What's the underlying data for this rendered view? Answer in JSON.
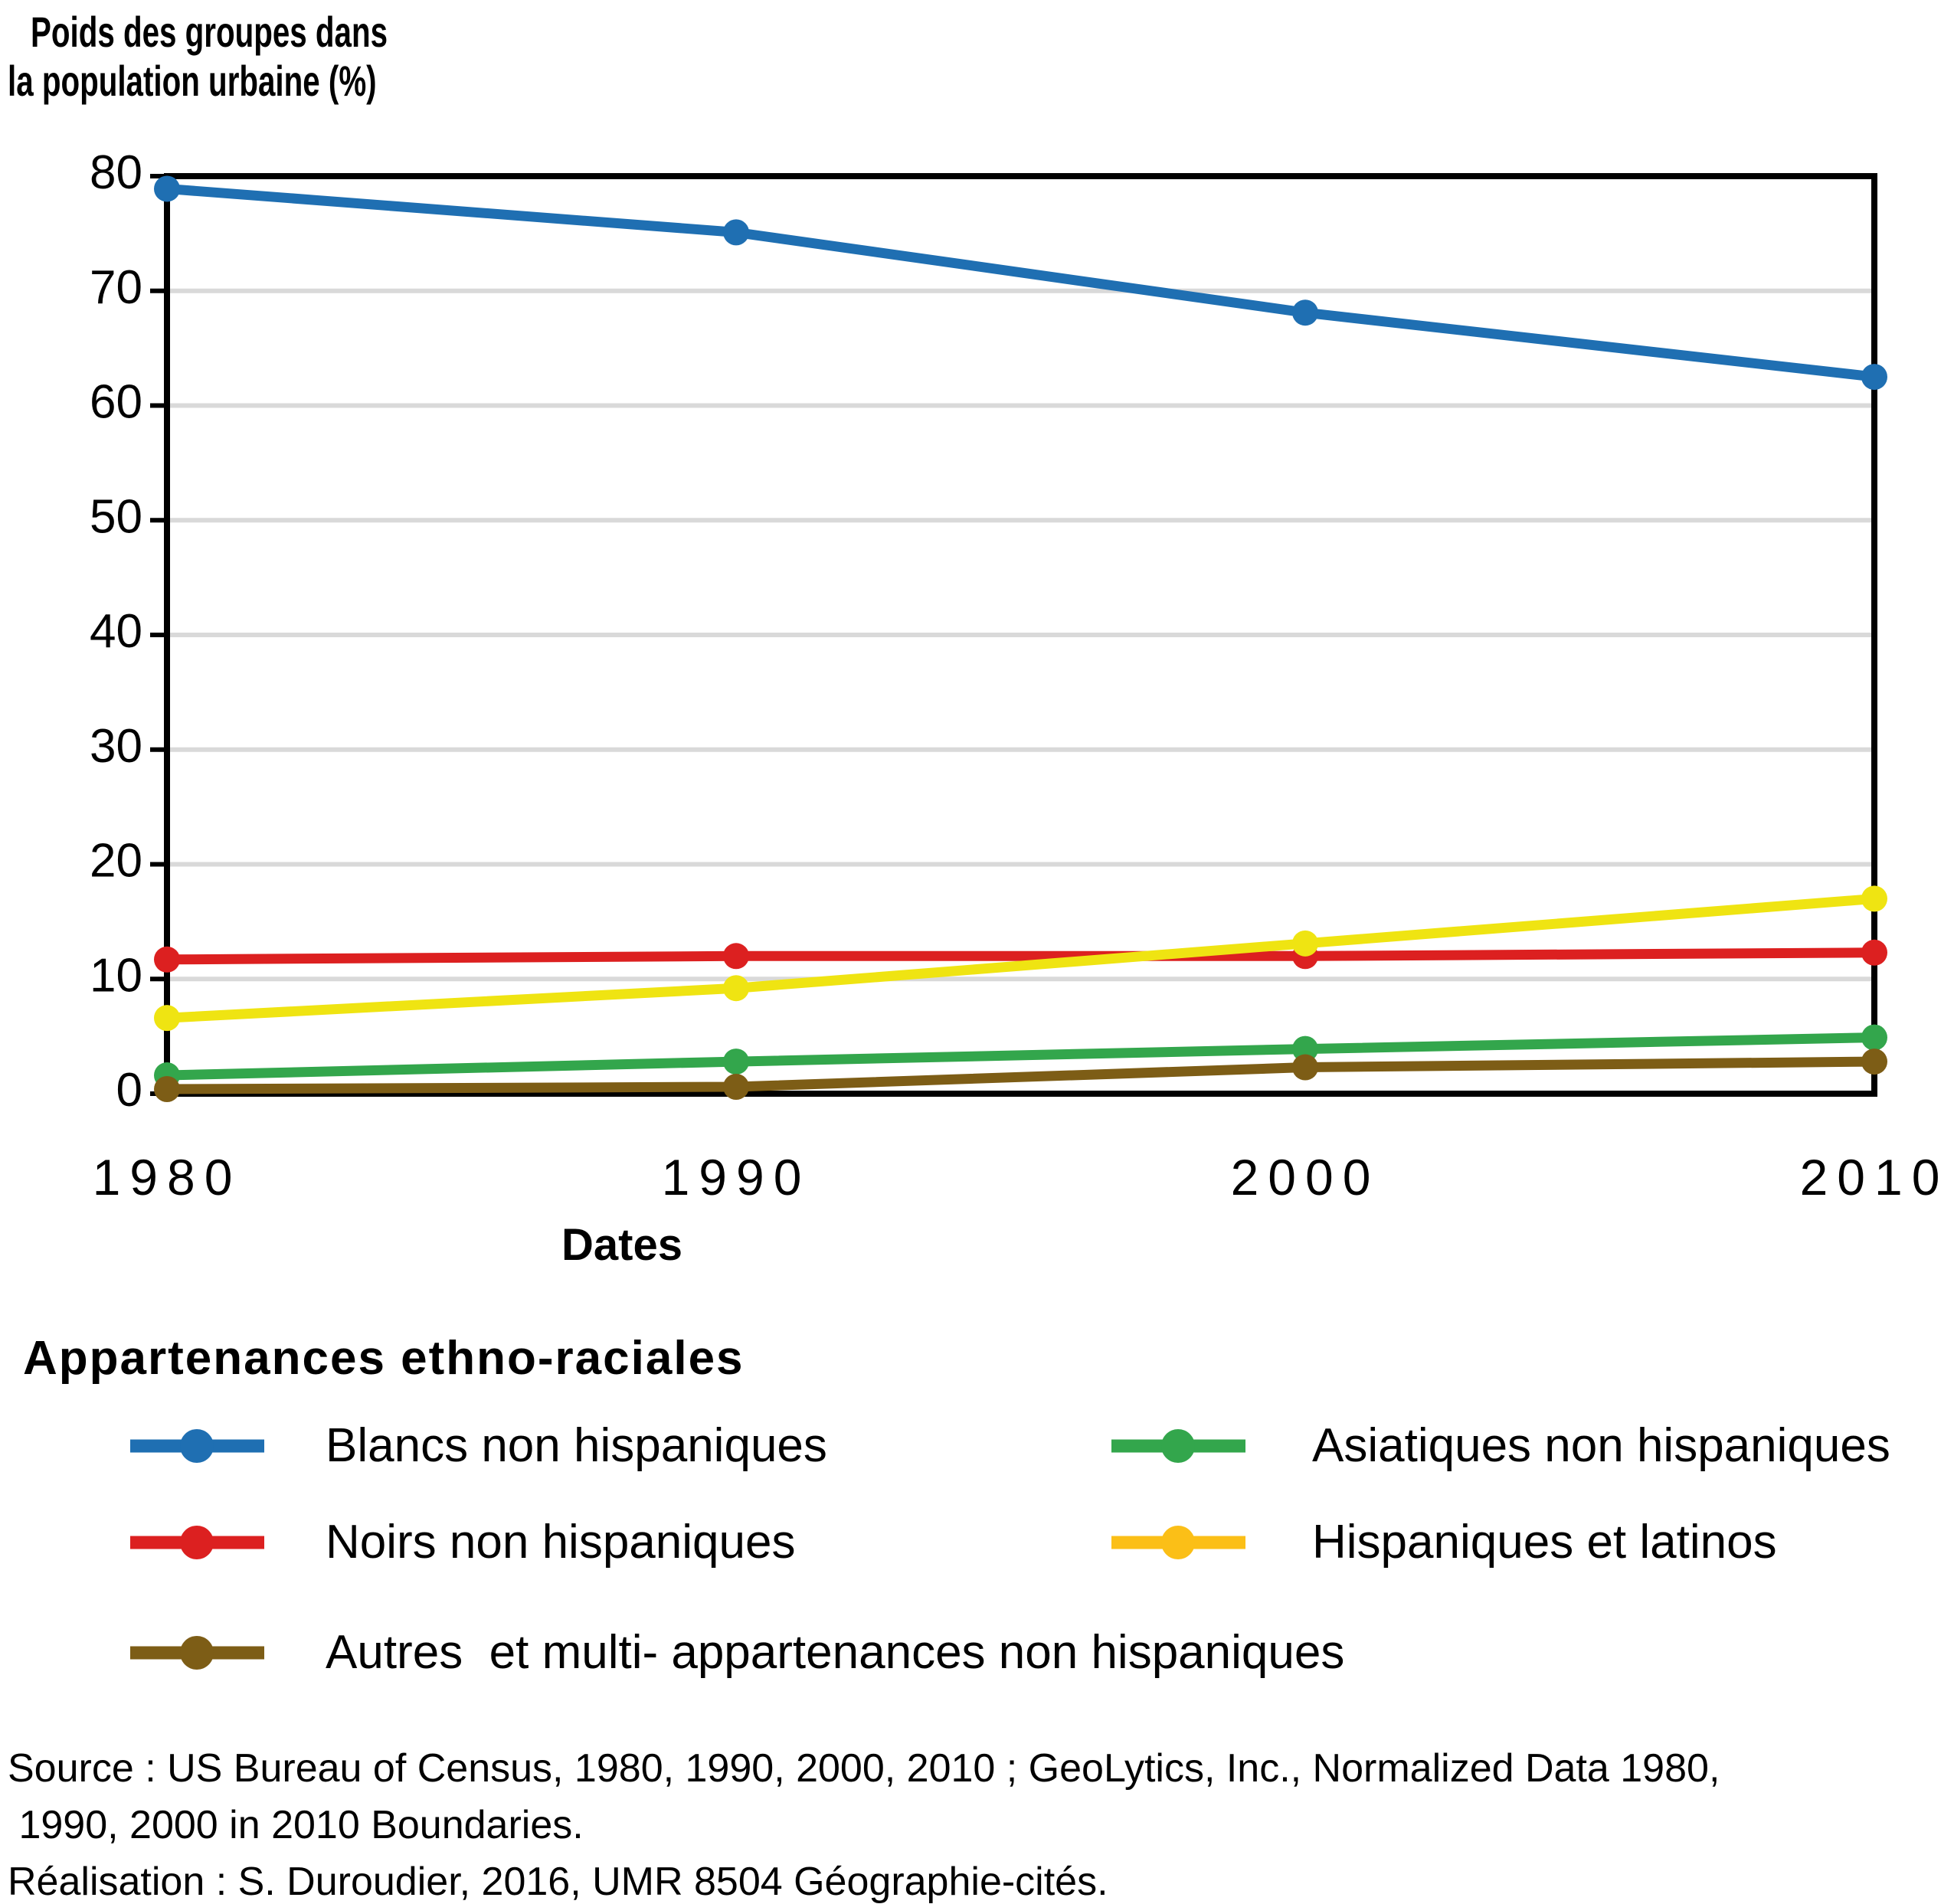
{
  "title": {
    "line1": "Poids des groupes dans",
    "line2": "la population urbaine (%)"
  },
  "chart_data": {
    "type": "line",
    "x": [
      1980,
      1990,
      2000,
      2010
    ],
    "xlabel": "Dates",
    "ylabel": "Poids des groupes dans la population urbaine (%)",
    "ylim": [
      0,
      80
    ],
    "y_step": 10,
    "grid": "horizontal",
    "grid_color": "#D9D9D9",
    "frame_color": "#000000",
    "legend_title": "Appartenances ethno-raciales",
    "legend_position": "below",
    "series": [
      {
        "name": "Blancs non hispaniques",
        "color": "#1F6FB2",
        "values": [
          78.9,
          75.1,
          68.1,
          62.5
        ]
      },
      {
        "name": "Noirs non hispaniques",
        "color": "#DC2020",
        "values": [
          11.7,
          12.0,
          12.0,
          12.3
        ]
      },
      {
        "name": "Hispaniques et latinos",
        "color": "#EFE412",
        "legend_color": "#FBBF17",
        "values": [
          6.6,
          9.2,
          13.1,
          17.0
        ]
      },
      {
        "name": "Asiatiques non hispaniques",
        "color": "#33A64C",
        "values": [
          1.6,
          2.8,
          3.9,
          4.9
        ]
      },
      {
        "name": "Autres  et multi- appartenances non hispaniques",
        "color": "#7D5D16",
        "values": [
          0.4,
          0.6,
          2.3,
          2.8
        ]
      }
    ]
  },
  "source": {
    "line1": "Source : US Bureau of Census, 1980, 1990, 2000, 2010 ; GeoLytics, Inc., Normalized Data 1980,",
    "line2": " 1990, 2000 in 2010 Boundaries.",
    "line3": "Réalisation : S. Duroudier, 2016, UMR 8504 Géographie-cités."
  }
}
